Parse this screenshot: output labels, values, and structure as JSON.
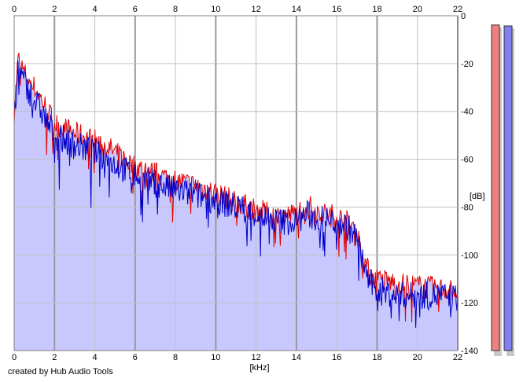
{
  "chart_data": {
    "type": "line",
    "x_unit_label": "[kHz]",
    "y_unit_label": "[dB]",
    "xlim": [
      0,
      22
    ],
    "ylim": [
      -140,
      0
    ],
    "x_ticks": [
      0,
      2,
      4,
      6,
      8,
      10,
      12,
      14,
      16,
      18,
      20,
      22
    ],
    "y_ticks": [
      0,
      -20,
      -40,
      -60,
      -80,
      -100,
      -120,
      -140
    ],
    "grid": true,
    "fill_color": "#c8c8ff",
    "series": [
      {
        "color": "#e00000",
        "x": [
          0,
          0.2,
          0.5,
          1,
          1.5,
          2,
          3,
          4,
          5,
          6,
          7,
          8,
          9,
          10,
          11,
          12,
          13,
          14,
          14.5,
          15,
          16,
          16.5,
          17,
          17.3,
          17.6,
          18,
          19,
          20,
          21,
          22
        ],
        "y": [
          -40,
          -18,
          -24,
          -30,
          -37,
          -45,
          -49,
          -52,
          -57,
          -63,
          -66,
          -69,
          -71,
          -74,
          -78,
          -81,
          -84,
          -83,
          -79,
          -82,
          -84,
          -86,
          -91,
          -100,
          -108,
          -110,
          -112,
          -113,
          -114,
          -115
        ]
      },
      {
        "color": "#0000c8",
        "x": [
          0,
          0.2,
          0.5,
          1,
          1.5,
          2,
          3,
          4,
          5,
          6,
          7,
          8,
          9,
          10,
          11,
          12,
          13,
          14,
          14.5,
          15,
          16,
          16.5,
          17,
          17.3,
          17.6,
          18,
          19,
          20,
          21,
          22
        ],
        "y": [
          -45,
          -22,
          -28,
          -35,
          -42,
          -50,
          -54,
          -57,
          -62,
          -67,
          -70,
          -73,
          -75,
          -77,
          -80,
          -83,
          -86,
          -86,
          -83,
          -85,
          -86,
          -88,
          -93,
          -103,
          -111,
          -115,
          -117,
          -117,
          -117,
          -118
        ]
      }
    ],
    "level_meters": [
      {
        "channel_color": "#f08080",
        "level_db": -3
      },
      {
        "channel_color": "#8080f0",
        "level_db": -5
      }
    ]
  },
  "footer": {
    "credit": "created by Hub Audio Tools"
  }
}
